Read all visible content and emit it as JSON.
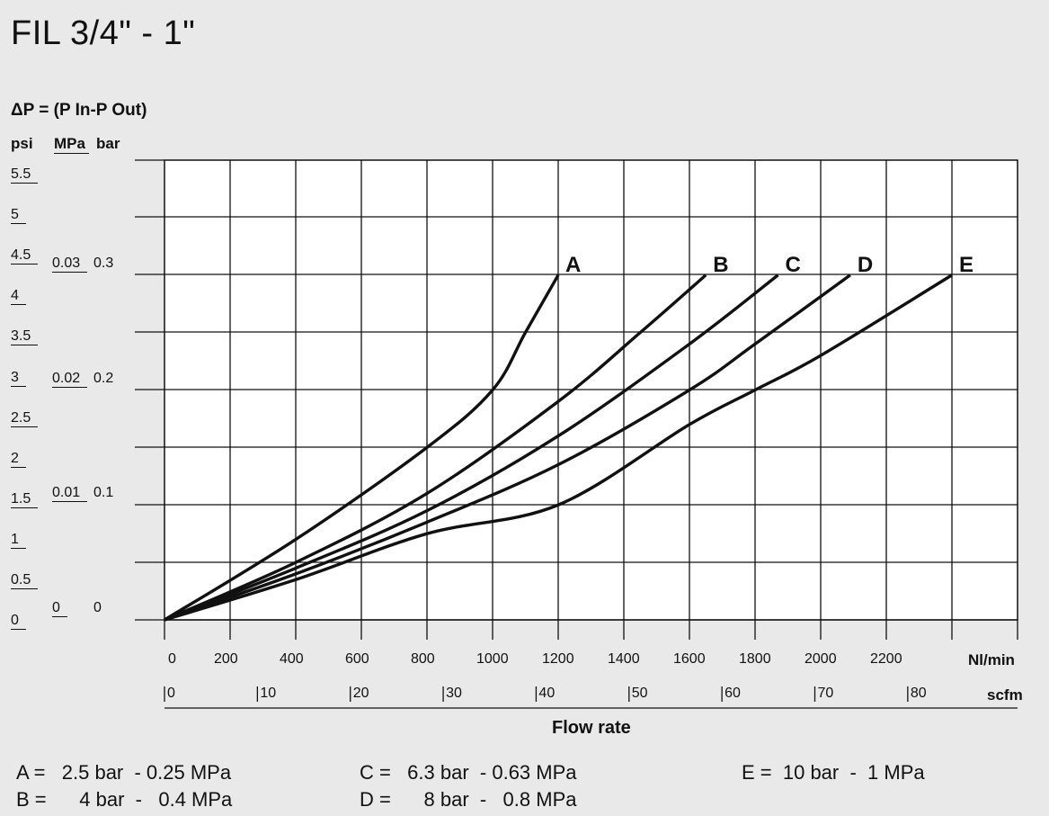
{
  "title": "FIL 3/4\" - 1\"",
  "delta_p_label": "ΔP = (P In-P Out)",
  "units": {
    "psi": "psi",
    "mpa": "MPa",
    "bar": "bar"
  },
  "psi_ticks": [
    "5.5",
    "5",
    "4.5",
    "4",
    "3.5",
    "3",
    "2.5",
    "2",
    "1.5",
    "1",
    "0.5",
    "0"
  ],
  "mpa_ticks": [
    "0.03",
    "0.02",
    "0.01",
    "0"
  ],
  "bar_ticks": [
    "0.3",
    "0.2",
    "0.1",
    "0"
  ],
  "xlabel": "Flow rate",
  "x_unit": "Nl/min",
  "x2_unit": "scfm",
  "x_ticks": [
    "0",
    "200",
    "400",
    "600",
    "800",
    "1000",
    "1200",
    "1400",
    "1600",
    "1800",
    "2000",
    "2200"
  ],
  "scfm_ticks": [
    "0",
    "10",
    "20",
    "30",
    "40",
    "50",
    "60",
    "70",
    "80"
  ],
  "legend": [
    {
      "key": "A",
      "text": "A =   2.5 bar  - 0.25 MPa"
    },
    {
      "key": "B",
      "text": "B =      4 bar  -   0.4 MPa"
    },
    {
      "key": "C",
      "text": "C =   6.3 bar  - 0.63 MPa"
    },
    {
      "key": "D",
      "text": "D =      8 bar  -   0.8 MPa"
    },
    {
      "key": "E",
      "text": "E =  10 bar  -  1 MPa"
    }
  ],
  "colors": {
    "background": "#e9e9e9",
    "grid": "#111111",
    "curve": "#111111"
  },
  "chart_data": {
    "type": "line",
    "xlim": [
      0,
      2600
    ],
    "ylim": [
      0,
      0.4
    ],
    "grid": true,
    "series": [
      {
        "name": "A",
        "x": [
          0,
          400,
          800,
          1000,
          1100,
          1200
        ],
        "y": [
          0,
          0.07,
          0.15,
          0.2,
          0.25,
          0.3
        ]
      },
      {
        "name": "B",
        "x": [
          0,
          400,
          800,
          1200,
          1450,
          1650
        ],
        "y": [
          0,
          0.05,
          0.11,
          0.19,
          0.25,
          0.3
        ]
      },
      {
        "name": "C",
        "x": [
          0,
          400,
          800,
          1200,
          1600,
          1870
        ],
        "y": [
          0,
          0.045,
          0.095,
          0.16,
          0.24,
          0.3
        ]
      },
      {
        "name": "D",
        "x": [
          0,
          400,
          800,
          1200,
          1600,
          1800,
          2090
        ],
        "y": [
          0,
          0.04,
          0.085,
          0.135,
          0.2,
          0.24,
          0.3
        ]
      },
      {
        "name": "E",
        "x": [
          0,
          400,
          800,
          1200,
          1600,
          1800,
          2000,
          2400
        ],
        "y": [
          0,
          0.035,
          0.075,
          0.1,
          0.17,
          0.2,
          0.23,
          0.3
        ]
      }
    ]
  }
}
